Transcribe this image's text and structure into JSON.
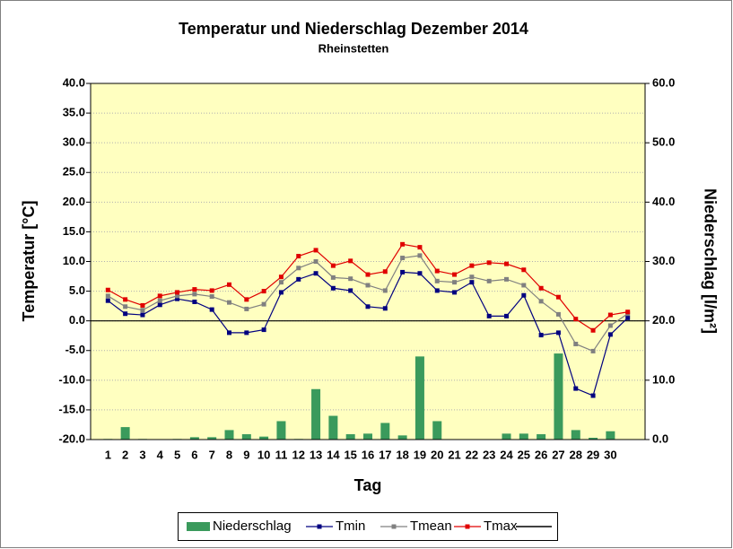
{
  "chart_data": {
    "type": "combo",
    "title": "Temperatur und Niederschlag Dezember 2014",
    "subtitle": "Rheinstetten",
    "x_label": "Tag",
    "y_label": "Temperatur [°C]",
    "y2_label": "Niederschlag [l/m²]",
    "categories": [
      "1",
      "2",
      "3",
      "4",
      "5",
      "6",
      "7",
      "8",
      "9",
      "10",
      "11",
      "12",
      "13",
      "14",
      "15",
      "16",
      "17",
      "18",
      "19",
      "20",
      "21",
      "22",
      "23",
      "24",
      "25",
      "26",
      "27",
      "28",
      "29",
      "30",
      null
    ],
    "ylim": [
      -20,
      40
    ],
    "yticks": [
      {
        "value": -20,
        "label": "-20.0"
      },
      {
        "value": -15,
        "label": "-15.0"
      },
      {
        "value": -10,
        "label": "-10.0"
      },
      {
        "value": -5,
        "label": "-5.0"
      },
      {
        "value": 0,
        "label": "0.0"
      },
      {
        "value": 5,
        "label": "5.0"
      },
      {
        "value": 10,
        "label": "10.0"
      },
      {
        "value": 15,
        "label": "15.0"
      },
      {
        "value": 20,
        "label": "20.0"
      },
      {
        "value": 25,
        "label": "25.0"
      },
      {
        "value": 30,
        "label": "30.0"
      },
      {
        "value": 35,
        "label": "35.0"
      },
      {
        "value": 40,
        "label": "40.0"
      }
    ],
    "y2lim": [
      0,
      60
    ],
    "y2ticks": [
      {
        "value": 0,
        "label": "0.0"
      },
      {
        "value": 10,
        "label": "10.0"
      },
      {
        "value": 20,
        "label": "20.0"
      },
      {
        "value": 30,
        "label": "30.0"
      },
      {
        "value": 40,
        "label": "40.0"
      },
      {
        "value": 50,
        "label": "50.0"
      },
      {
        "value": 60,
        "label": "60.0"
      }
    ],
    "grid": true,
    "legend": "bottom",
    "series": [
      {
        "name": "Niederschlag",
        "type": "bar",
        "axis": "y2",
        "color": "#3a9a5c",
        "values": [
          0.1,
          2.1,
          0.1,
          0,
          0.1,
          0.4,
          0.4,
          1.6,
          0.9,
          0.5,
          3.1,
          0.1,
          8.5,
          4.0,
          0.9,
          1.0,
          2.8,
          0.7,
          14.0,
          3.1,
          0,
          0,
          0,
          1.0,
          1.0,
          0.9,
          14.5,
          1.6,
          0.3,
          1.4,
          0
        ]
      },
      {
        "name": "Tmin",
        "type": "line",
        "color": "#000080",
        "values": [
          3.4,
          1.2,
          1.0,
          2.7,
          3.7,
          3.2,
          1.9,
          -2.0,
          -2.0,
          -1.5,
          4.8,
          7.0,
          8.0,
          5.5,
          5.1,
          2.4,
          2.1,
          8.2,
          8.0,
          5.1,
          4.8,
          6.5,
          0.8,
          0.8,
          4.3,
          -2.4,
          -2.0,
          -11.4,
          -12.6,
          -2.3,
          0.5
        ]
      },
      {
        "name": "Tmean",
        "type": "line",
        "color": "#808080",
        "values": [
          4.2,
          2.4,
          1.8,
          3.4,
          4.2,
          4.5,
          4.1,
          3.1,
          2.0,
          2.8,
          6.5,
          8.9,
          10.0,
          7.3,
          7.1,
          6.0,
          5.1,
          10.6,
          11.0,
          6.7,
          6.5,
          7.4,
          6.7,
          7.0,
          6.0,
          3.3,
          1.1,
          -3.9,
          -5.1,
          -0.8,
          1.2
        ]
      },
      {
        "name": "Tmax",
        "type": "line",
        "color": "#e00000",
        "values": [
          5.2,
          3.6,
          2.6,
          4.2,
          4.8,
          5.3,
          5.1,
          6.1,
          3.6,
          5.0,
          7.4,
          10.9,
          11.9,
          9.3,
          10.1,
          7.8,
          8.3,
          12.9,
          12.4,
          8.4,
          7.8,
          9.3,
          9.8,
          9.6,
          8.6,
          5.5,
          4.0,
          0.3,
          -1.6,
          1.0,
          1.5
        ]
      }
    ]
  }
}
